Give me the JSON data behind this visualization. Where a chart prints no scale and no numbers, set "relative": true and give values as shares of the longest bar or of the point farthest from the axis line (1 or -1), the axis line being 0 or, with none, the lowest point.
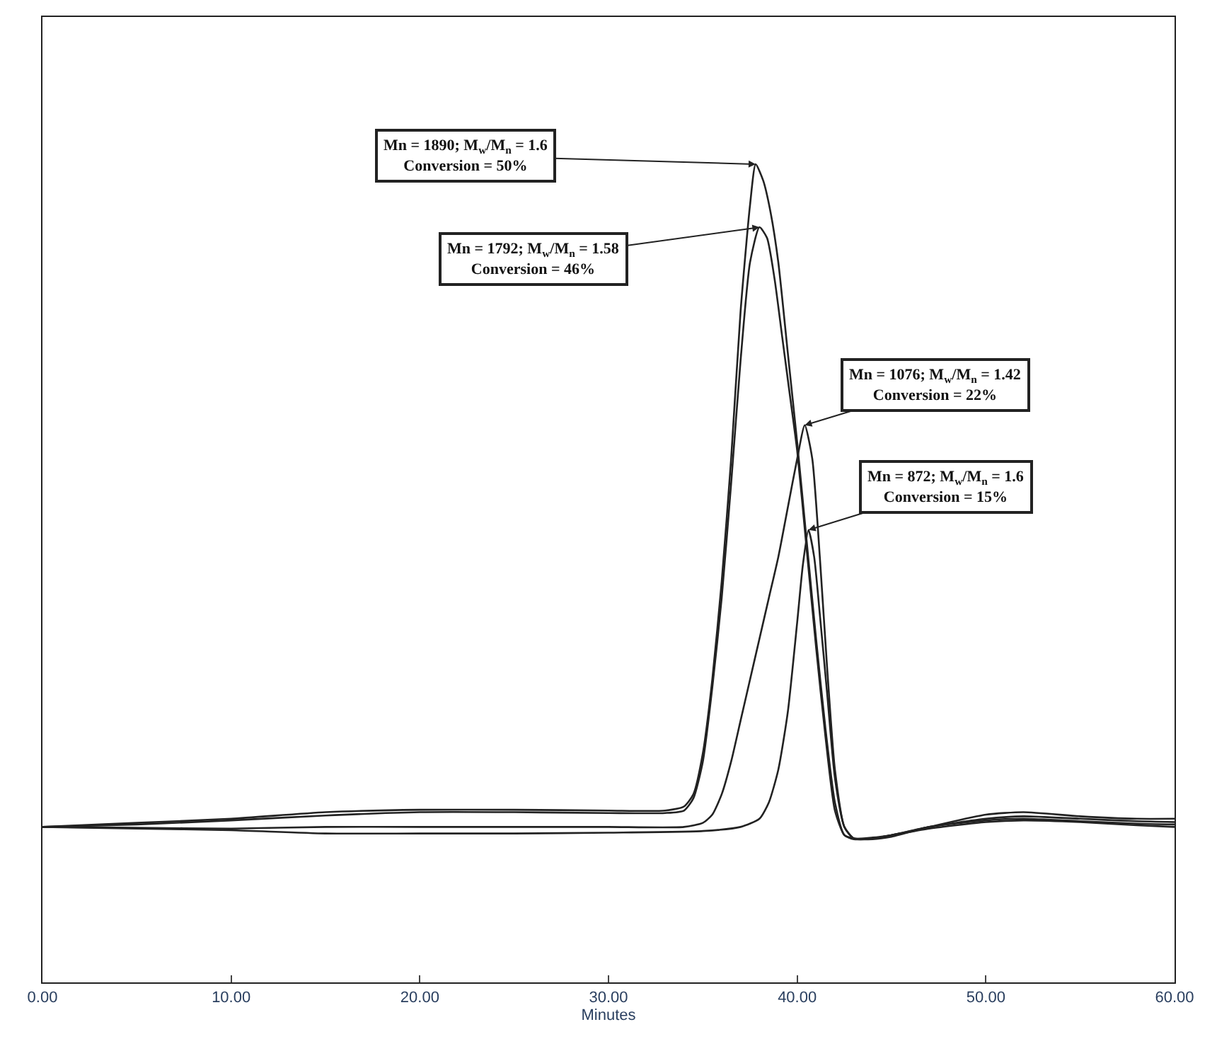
{
  "chart_data": {
    "type": "line",
    "relative": true,
    "xlabel": "Minutes",
    "xlim": [
      0,
      60
    ],
    "xticks": [
      {
        "value": 0,
        "label": "0.00"
      },
      {
        "value": 10,
        "label": "10.00"
      },
      {
        "value": 20,
        "label": "20.00"
      },
      {
        "value": 30,
        "label": "30.00"
      },
      {
        "value": 40,
        "label": "40.00"
      },
      {
        "value": 50,
        "label": "50.00"
      },
      {
        "value": 60,
        "label": "60.00"
      }
    ],
    "tick_labels": "x",
    "marker": "none",
    "line_style": "solid",
    "series": [
      {
        "color": "#222222",
        "x": [
          0,
          5,
          10,
          15,
          20,
          25,
          30,
          33,
          34,
          34.5,
          35,
          35.5,
          36,
          36.5,
          37,
          37.5,
          37.8,
          38.2,
          38.6,
          39,
          39.5,
          40,
          40.5,
          41,
          41.5,
          42,
          42.5,
          43,
          44,
          45,
          47,
          50,
          52,
          55,
          58,
          60
        ],
        "values": [
          0.19,
          0.195,
          0.2,
          0.208,
          0.211,
          0.211,
          0.21,
          0.21,
          0.215,
          0.23,
          0.28,
          0.37,
          0.49,
          0.64,
          0.82,
          0.95,
          1.0,
          0.98,
          0.94,
          0.88,
          0.77,
          0.66,
          0.54,
          0.42,
          0.31,
          0.22,
          0.18,
          0.175,
          0.176,
          0.18,
          0.19,
          0.205,
          0.208,
          0.203,
          0.2,
          0.2
        ]
      },
      {
        "color": "#222222",
        "x": [
          0,
          5,
          10,
          15,
          20,
          25,
          30,
          33,
          34,
          34.5,
          35,
          35.5,
          36,
          36.5,
          37,
          37.5,
          38,
          38.4,
          38.8,
          39.2,
          39.6,
          40,
          40.5,
          41,
          41.5,
          42,
          42.5,
          43,
          44,
          45,
          47,
          50,
          52,
          55,
          58,
          60
        ],
        "values": [
          0.19,
          0.193,
          0.198,
          0.204,
          0.208,
          0.208,
          0.207,
          0.207,
          0.21,
          0.225,
          0.27,
          0.36,
          0.47,
          0.61,
          0.76,
          0.88,
          0.923,
          0.91,
          0.86,
          0.79,
          0.72,
          0.65,
          0.53,
          0.41,
          0.3,
          0.21,
          0.18,
          0.176,
          0.176,
          0.18,
          0.19,
          0.2,
          0.203,
          0.2,
          0.197,
          0.196
        ]
      },
      {
        "color": "#222222",
        "x": [
          0,
          5,
          10,
          15,
          20,
          25,
          30,
          34,
          35,
          35.5,
          36,
          36.5,
          37,
          37.5,
          38,
          38.5,
          39,
          39.5,
          40,
          40.4,
          40.8,
          41.2,
          41.6,
          42,
          42.5,
          43,
          44,
          45,
          47,
          50,
          52,
          55,
          58,
          60
        ],
        "values": [
          0.19,
          0.189,
          0.188,
          0.19,
          0.19,
          0.19,
          0.19,
          0.19,
          0.195,
          0.205,
          0.23,
          0.27,
          0.32,
          0.37,
          0.42,
          0.47,
          0.52,
          0.58,
          0.64,
          0.681,
          0.64,
          0.52,
          0.38,
          0.26,
          0.19,
          0.176,
          0.175,
          0.178,
          0.19,
          0.198,
          0.2,
          0.197,
          0.194,
          0.193
        ]
      },
      {
        "color": "#222222",
        "x": [
          0,
          5,
          10,
          15,
          20,
          25,
          30,
          35,
          37,
          38,
          38.5,
          39,
          39.5,
          40,
          40.3,
          40.6,
          40.9,
          41.2,
          41.6,
          42,
          42.5,
          43,
          44,
          45,
          47,
          50,
          52,
          55,
          58,
          60
        ],
        "values": [
          0.19,
          0.188,
          0.186,
          0.182,
          0.182,
          0.182,
          0.183,
          0.185,
          0.19,
          0.2,
          0.22,
          0.26,
          0.33,
          0.44,
          0.51,
          0.553,
          0.52,
          0.45,
          0.35,
          0.25,
          0.19,
          0.176,
          0.177,
          0.18,
          0.188,
          0.196,
          0.198,
          0.196,
          0.192,
          0.19
        ]
      }
    ],
    "annotations": [
      {
        "text": "Mn = 1890; M$_{w}$/M$_{n}$ = 1.6\nConversion = 50%",
        "x": 37.8,
        "y": 1.0
      },
      {
        "text": "Mn = 1792; M$_{w}$/M$_{n}$ = 1.58\nConversion = 46%",
        "x": 38,
        "y": 0.923
      },
      {
        "text": "Mn = 1076; M$_{w}$/M$_{n}$ = 1.42\nConversion = 22%",
        "x": 40.4,
        "y": 0.681
      },
      {
        "text": "Mn = 872; M$_{w}$/M$_{n}$ = 1.6\nConversion = 15%",
        "x": 40.6,
        "y": 0.553
      }
    ]
  }
}
